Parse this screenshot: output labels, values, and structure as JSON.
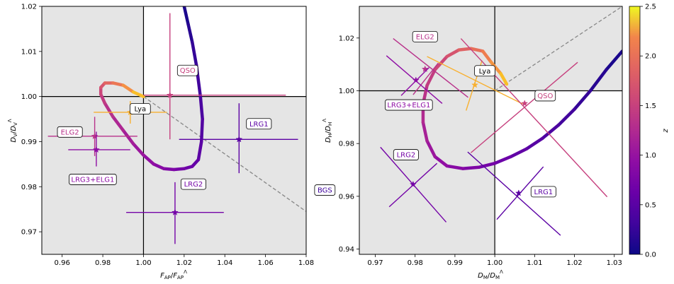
{
  "chart_data": [
    {
      "type": "line",
      "panel": "left",
      "xlabel": "F_AP/F_AP^Λ",
      "ylabel": "D_V/D_V^Λ",
      "xlim": [
        0.95,
        1.08
      ],
      "ylim": [
        0.965,
        1.02
      ],
      "xticks": [
        0.96,
        0.98,
        1.0,
        1.02,
        1.04,
        1.06,
        1.08
      ],
      "yticks": [
        0.97,
        0.98,
        0.99,
        1.0,
        1.01,
        1.02
      ],
      "xtick_labels": [
        "0.96",
        "0.98",
        "1.00",
        "1.02",
        "1.04",
        "1.06",
        "1.08"
      ],
      "ytick_labels": [
        "0.97",
        "0.98",
        "0.99",
        "1.00",
        "1.01",
        "1.02"
      ],
      "grid": false,
      "shaded_regions": [
        {
          "x": [
            0.95,
            1.0
          ],
          "y": [
            0.965,
            1.02
          ]
        },
        {
          "x": [
            1.0,
            1.08
          ],
          "y": [
            0.965,
            1.0
          ]
        }
      ],
      "diagonal_dashed": {
        "x": [
          1.0,
          1.08
        ],
        "y": [
          1.0,
          0.9745
        ]
      },
      "reference_lines": {
        "x": 1.0,
        "y": 1.0
      },
      "curve": {
        "x": [
          1.02,
          1.022,
          1.024,
          1.026,
          1.028,
          1.029,
          1.0285,
          1.027,
          1.024,
          1.02,
          1.015,
          1.01,
          1.005,
          1.0,
          0.995,
          0.99,
          0.985,
          0.981,
          0.979,
          0.979,
          0.981,
          0.985,
          0.99,
          0.995,
          1.0
        ],
        "y": [
          1.02,
          1.016,
          1.012,
          1.007,
          1.0,
          0.995,
          0.99,
          0.986,
          0.9845,
          0.984,
          0.9838,
          0.984,
          0.985,
          0.987,
          0.9895,
          0.9925,
          0.9955,
          0.9985,
          1.0005,
          1.002,
          1.003,
          1.003,
          1.0025,
          1.001,
          1.0
        ],
        "z": [
          0.05,
          0.12,
          0.2,
          0.28,
          0.36,
          0.42,
          0.48,
          0.54,
          0.6,
          0.68,
          0.76,
          0.84,
          0.92,
          1.0,
          1.08,
          1.16,
          1.26,
          1.36,
          1.48,
          1.62,
          1.8,
          1.98,
          2.15,
          2.3,
          2.45
        ]
      },
      "points": [
        {
          "name": "QSO",
          "x": 1.013,
          "y": 1.0003,
          "xerr": [
            1.0,
            1.07
          ],
          "yerr": [
            0.9905,
            1.0185
          ],
          "z": 1.49
        },
        {
          "name": "ELG2",
          "x": 0.976,
          "y": 0.9912,
          "xerr": [
            0.953,
            0.997
          ],
          "yerr": [
            0.9868,
            0.9955
          ],
          "z": 1.33
        },
        {
          "name": "LRG3+ELG1",
          "x": 0.9768,
          "y": 0.9882,
          "xerr": [
            0.963,
            0.9935
          ],
          "yerr": [
            0.9845,
            0.9922
          ],
          "z": 0.93
        },
        {
          "name": "Lya",
          "x": 0.9935,
          "y": 0.9965,
          "xerr": [
            0.9755,
            1.0115
          ],
          "yerr": [
            0.994,
            0.999
          ],
          "z": 2.33
        },
        {
          "name": "LRG1",
          "x": 1.047,
          "y": 0.9905,
          "xerr": [
            1.0175,
            1.076
          ],
          "yerr": [
            0.983,
            0.9985
          ],
          "z": 0.51
        },
        {
          "name": "LRG2",
          "x": 1.0155,
          "y": 0.9743,
          "xerr": [
            0.9915,
            1.0395
          ],
          "yerr": [
            0.9673,
            0.981
          ],
          "z": 0.71
        },
        {
          "name": "BGS",
          "x": 1.085,
          "y": 0.9852,
          "xerr": [
            1.085,
            1.085
          ],
          "yerr": [
            0.9735,
            0.997
          ],
          "z": 0.3
        }
      ]
    },
    {
      "type": "line",
      "panel": "right",
      "xlabel": "D_M/D_M^Λ",
      "ylabel": "D_H/D_H^Λ",
      "xlim": [
        0.966,
        1.032
      ],
      "ylim": [
        0.938,
        1.032
      ],
      "xticks": [
        0.97,
        0.98,
        0.99,
        1.0,
        1.01,
        1.02,
        1.03
      ],
      "yticks": [
        0.94,
        0.96,
        0.98,
        1.0,
        1.02
      ],
      "xtick_labels": [
        "0.97",
        "0.98",
        "0.99",
        "1.00",
        "1.01",
        "1.02",
        "1.03"
      ],
      "ytick_labels": [
        "0.94",
        "0.96",
        "0.98",
        "1.00",
        "1.02"
      ],
      "grid": false,
      "shaded_regions": [
        {
          "x": [
            0.966,
            1.0
          ],
          "y": [
            0.938,
            1.032
          ]
        },
        {
          "x": [
            1.0,
            1.032
          ],
          "y": [
            1.0,
            1.032
          ]
        }
      ],
      "diagonal_dashed": {
        "x": [
          1.0,
          1.032
        ],
        "y": [
          1.0,
          1.032
        ]
      },
      "reference_lines": {
        "x": 1.0,
        "y": 1.0
      },
      "curve": {
        "x": [
          1.032,
          1.028,
          1.024,
          1.02,
          1.016,
          1.012,
          1.008,
          1.004,
          1.0,
          0.996,
          0.992,
          0.988,
          0.985,
          0.983,
          0.982,
          0.982,
          0.983,
          0.985,
          0.988,
          0.991,
          0.994,
          0.997,
          0.999,
          1.0015,
          1.003
        ],
        "y": [
          1.015,
          1.008,
          1.0,
          0.993,
          0.987,
          0.982,
          0.978,
          0.975,
          0.9725,
          0.971,
          0.9705,
          0.9715,
          0.975,
          0.981,
          0.988,
          0.995,
          1.002,
          1.008,
          1.013,
          1.0155,
          1.016,
          1.015,
          1.011,
          1.0065,
          1.0025
        ],
        "z": [
          0.05,
          0.12,
          0.2,
          0.28,
          0.36,
          0.44,
          0.52,
          0.6,
          0.68,
          0.76,
          0.84,
          0.92,
          1.0,
          1.1,
          1.2,
          1.3,
          1.4,
          1.5,
          1.62,
          1.78,
          1.92,
          2.05,
          2.18,
          2.3,
          2.45
        ]
      },
      "points": [
        {
          "name": "ELG2",
          "x": 0.9825,
          "y": 1.0082,
          "z": 1.33,
          "arm1": [
            [
              0.9745,
              1.0198
            ],
            [
              0.9933,
              0.9975
            ]
          ],
          "arm2": [
            [
              0.9795,
              0.9985
            ],
            [
              0.9858,
              1.0105
            ]
          ]
        },
        {
          "name": "LRG3+ELG1",
          "x": 0.9802,
          "y": 1.004,
          "z": 0.93,
          "arm1": [
            [
              0.9728,
              1.0133
            ],
            [
              0.9868,
              0.9952
            ]
          ],
          "arm2": [
            [
              0.9765,
              0.9982
            ],
            [
              0.9835,
              1.0088
            ]
          ]
        },
        {
          "name": "Lya",
          "x": 0.995,
          "y": 1.0022,
          "z": 2.33,
          "arm1": [
            [
              0.983,
              1.013
            ],
            [
              1.007,
              0.995
            ]
          ],
          "arm2": [
            [
              0.9928,
              0.9925
            ],
            [
              0.9968,
              1.0115
            ]
          ]
        },
        {
          "name": "QSO",
          "x": 1.0075,
          "y": 0.9952,
          "z": 1.49,
          "arm1": [
            [
              0.9915,
              1.0198
            ],
            [
              1.0282,
              0.9598
            ]
          ],
          "arm2": [
            [
              0.994,
              0.9765
            ],
            [
              1.0208,
              1.0108
            ]
          ]
        },
        {
          "name": "LRG2",
          "x": 0.9795,
          "y": 0.9645,
          "z": 0.71,
          "arm1": [
            [
              0.9713,
              0.9786
            ],
            [
              0.9878,
              0.9502
            ]
          ],
          "arm2": [
            [
              0.9735,
              0.956
            ],
            [
              0.9855,
              0.9725
            ]
          ]
        },
        {
          "name": "LRG1",
          "x": 1.006,
          "y": 0.9612,
          "z": 0.51,
          "arm1": [
            [
              0.9932,
              0.9768
            ],
            [
              1.0165,
              0.9452
            ]
          ],
          "arm2": [
            [
              1.0005,
              0.9512
            ],
            [
              1.0122,
              0.9712
            ]
          ]
        }
      ]
    }
  ],
  "colorbar": {
    "label": "z",
    "range": [
      0.0,
      2.5
    ],
    "ticks": [
      0.0,
      0.5,
      1.0,
      1.5,
      2.0,
      2.5
    ],
    "tick_labels": [
      "0.0",
      "0.5",
      "1.0",
      "1.5",
      "2.0",
      "2.5"
    ],
    "colormap": "plasma"
  }
}
